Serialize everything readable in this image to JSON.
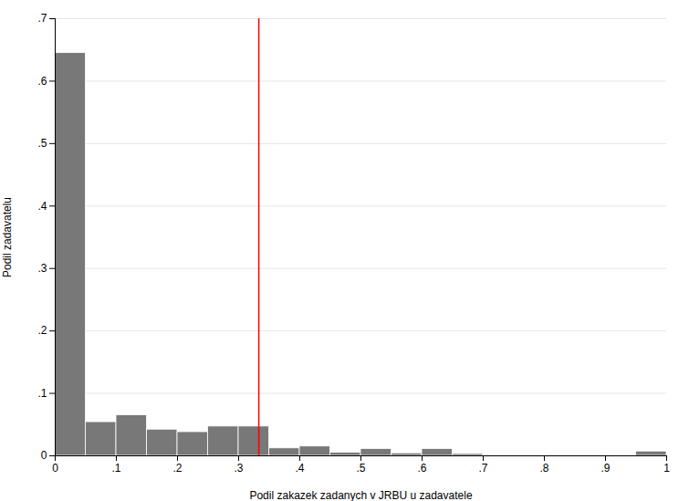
{
  "chart_data": {
    "type": "histogram",
    "xlabel": "Podil zakazek zadanych v JRBU u zadavatele",
    "ylabel": "Podil zadavatelu",
    "bins": [
      0.0,
      0.05,
      0.1,
      0.15,
      0.2,
      0.25,
      0.3,
      0.35,
      0.4,
      0.45,
      0.5,
      0.55,
      0.6,
      0.65,
      0.7,
      0.75,
      0.8,
      0.85,
      0.9,
      0.95,
      1.0
    ],
    "values": [
      0.645,
      0.054,
      0.065,
      0.042,
      0.038,
      0.047,
      0.047,
      0.012,
      0.015,
      0.005,
      0.011,
      0.004,
      0.011,
      0.003,
      0.001,
      0.001,
      0.0,
      0.0,
      0.0,
      0.007
    ],
    "color": "#787878",
    "reference_lines": [
      {
        "x": 0.333,
        "color": "#ff0000"
      }
    ],
    "xlim": [
      0,
      1
    ],
    "ylim": [
      0,
      0.7
    ],
    "xticks": [
      0,
      {
        "value": 0.1,
        "label": ".1"
      },
      {
        "value": 0.2,
        "label": ".2"
      },
      {
        "value": 0.3,
        "label": ".3"
      },
      {
        "value": 0.4,
        "label": ".4"
      },
      {
        "value": 0.5,
        "label": ".5"
      },
      {
        "value": 0.6,
        "label": ".6"
      },
      {
        "value": 0.7,
        "label": ".7"
      },
      {
        "value": 0.8,
        "label": ".8"
      },
      {
        "value": 0.9,
        "label": ".9"
      },
      1
    ],
    "yticks": [
      0,
      {
        "value": 0.1,
        "label": ".1"
      },
      {
        "value": 0.2,
        "label": ".2"
      },
      {
        "value": 0.3,
        "label": ".3"
      },
      {
        "value": 0.4,
        "label": ".4"
      },
      {
        "value": 0.5,
        "label": ".5"
      },
      {
        "value": 0.6,
        "label": ".6"
      },
      {
        "value": 0.7,
        "label": ".7"
      }
    ],
    "grid": true
  }
}
